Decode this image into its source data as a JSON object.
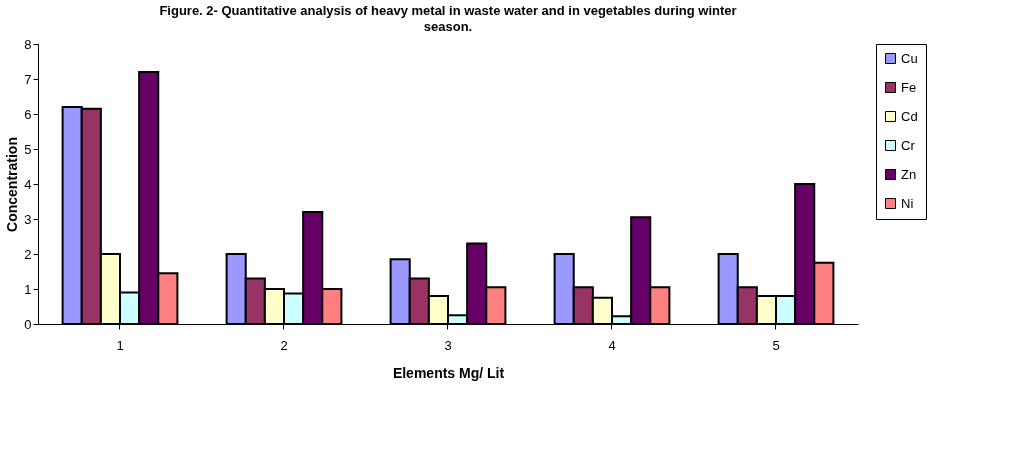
{
  "chart_data": {
    "type": "bar",
    "title": "Figure. 2- Quantitative analysis of heavy metal in waste water and  in vegetables during winter season.",
    "xlabel": "Elements Mg/ Lit",
    "ylabel": "Concentration",
    "categories": [
      "1",
      "2",
      "3",
      "4",
      "5"
    ],
    "series": [
      {
        "name": "Cu",
        "color": "#9999ff",
        "values": [
          6.2,
          2.0,
          1.85,
          2.0,
          2.0
        ]
      },
      {
        "name": "Fe",
        "color": "#993366",
        "values": [
          6.15,
          1.3,
          1.3,
          1.05,
          1.05
        ]
      },
      {
        "name": "Cd",
        "color": "#ffffcc",
        "values": [
          2.0,
          1.0,
          0.8,
          0.75,
          0.8
        ]
      },
      {
        "name": "Cr",
        "color": "#ccffff",
        "values": [
          0.9,
          0.87,
          0.25,
          0.22,
          0.8
        ]
      },
      {
        "name": "Zn",
        "color": "#660066",
        "values": [
          7.2,
          3.2,
          2.3,
          3.05,
          4.0
        ]
      },
      {
        "name": "Ni",
        "color": "#ff8080",
        "values": [
          1.45,
          1.0,
          1.05,
          1.05,
          1.75
        ]
      }
    ],
    "ylim": [
      0,
      8
    ],
    "yticks": [
      0,
      1,
      2,
      3,
      4,
      5,
      6,
      7,
      8
    ],
    "grid": false,
    "legend": "right"
  }
}
